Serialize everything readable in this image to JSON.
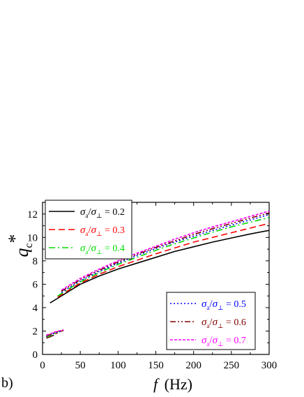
{
  "panel_label": "b)",
  "chart_data": {
    "type": "line",
    "xlabel": {
      "var": "f",
      "unit": "(Hz)"
    },
    "ylabel": {
      "var": "q",
      "sub": "c",
      "sup": "*"
    },
    "xlim": [
      0,
      300
    ],
    "ylim": [
      0,
      13
    ],
    "x_ticks": [
      0,
      50,
      100,
      150,
      200,
      250,
      300
    ],
    "y_ticks": [
      0,
      2,
      4,
      6,
      8,
      10,
      12
    ],
    "grid": false,
    "legend_placement": [
      "top-left",
      "bottom-right"
    ],
    "series": [
      {
        "name": "σa/σ⊥ = 0.2",
        "legend": {
          "num": "σ",
          "num_sub": "a",
          "den": "σ",
          "den_sub": "⊥",
          "value": "= 0.2"
        },
        "color": "#000000",
        "dash": "solid",
        "x": [
          10,
          20,
          30,
          40,
          50,
          75,
          100,
          125,
          150,
          175,
          200,
          225,
          250,
          275,
          300
        ],
        "y": [
          4.4,
          4.8,
          5.2,
          5.6,
          6.0,
          6.7,
          7.3,
          7.8,
          8.3,
          8.8,
          9.2,
          9.6,
          9.95,
          10.3,
          10.6
        ],
        "low_x": [
          5,
          10,
          15
        ],
        "low_y": [
          1.4,
          1.5,
          1.65
        ]
      },
      {
        "name": "σa/σ⊥ = 0.3",
        "legend": {
          "num": "σ",
          "num_sub": "a",
          "den": "σ",
          "den_sub": "⊥",
          "value": "= 0.3"
        },
        "color": "#ff0000",
        "dash": "dashed",
        "x": [
          20,
          30,
          40,
          50,
          75,
          100,
          125,
          150,
          175,
          200,
          225,
          250,
          275,
          300
        ],
        "y": [
          4.9,
          5.3,
          5.7,
          6.1,
          6.85,
          7.5,
          8.05,
          8.6,
          9.1,
          9.6,
          10.0,
          10.4,
          10.8,
          11.2
        ],
        "low_x": [
          5,
          10,
          15,
          20
        ],
        "low_y": [
          1.45,
          1.55,
          1.7,
          1.85
        ]
      },
      {
        "name": "σa/σ⊥ = 0.4",
        "legend": {
          "num": "σ",
          "num_sub": "a",
          "den": "σ",
          "den_sub": "⊥",
          "value": "= 0.4"
        },
        "color": "#00dd00",
        "dash": "dashdot",
        "x": [
          20,
          30,
          40,
          50,
          75,
          100,
          125,
          150,
          175,
          200,
          225,
          250,
          275,
          300
        ],
        "y": [
          5.0,
          5.4,
          5.8,
          6.2,
          7.0,
          7.7,
          8.3,
          8.9,
          9.45,
          9.95,
          10.45,
          10.9,
          11.3,
          11.7
        ],
        "low_x": [
          5,
          10,
          15,
          20,
          25
        ],
        "low_y": [
          1.5,
          1.6,
          1.75,
          1.9,
          2.0
        ]
      },
      {
        "name": "σa/σ⊥ = 0.5",
        "legend": {
          "num": "σ",
          "num_sub": "a",
          "den": "σ",
          "den_sub": "⊥",
          "value": "= 0.5"
        },
        "color": "#0000ff",
        "dash": "dotted",
        "x": [
          25,
          30,
          40,
          50,
          75,
          100,
          125,
          150,
          175,
          200,
          225,
          250,
          275,
          300
        ],
        "y": [
          5.3,
          5.5,
          5.9,
          6.3,
          7.1,
          7.8,
          8.45,
          9.05,
          9.6,
          10.1,
          10.6,
          11.05,
          11.5,
          11.95
        ],
        "low_x": [
          5,
          10,
          15,
          20,
          25
        ],
        "low_y": [
          1.55,
          1.65,
          1.8,
          1.9,
          2.0
        ]
      },
      {
        "name": "σa/σ⊥ = 0.6",
        "legend": {
          "num": "σ",
          "num_sub": "a",
          "den": "σ",
          "den_sub": "⊥",
          "value": "= 0.6"
        },
        "color": "#800000",
        "dash": "dashdotdot",
        "x": [
          25,
          30,
          40,
          50,
          75,
          100,
          125,
          150,
          175,
          200,
          225,
          250,
          275,
          300
        ],
        "y": [
          5.4,
          5.6,
          6.0,
          6.4,
          7.2,
          7.9,
          8.55,
          9.15,
          9.7,
          10.25,
          10.75,
          11.2,
          11.65,
          12.1
        ],
        "low_x": [
          5,
          10,
          15,
          20,
          25,
          28
        ],
        "low_y": [
          1.6,
          1.7,
          1.85,
          1.95,
          2.0,
          2.05
        ]
      },
      {
        "name": "σa/σ⊥ = 0.7",
        "legend": {
          "num": "σ",
          "num_sub": "a",
          "den": "σ",
          "den_sub": "⊥",
          "value": "= 0.7"
        },
        "color": "#ff00ff",
        "dash": "shortdash",
        "x": [
          25,
          30,
          40,
          50,
          75,
          100,
          125,
          150,
          175,
          200,
          225,
          250,
          275,
          300
        ],
        "y": [
          5.5,
          5.7,
          6.1,
          6.5,
          7.3,
          8.0,
          8.65,
          9.25,
          9.85,
          10.4,
          10.9,
          11.35,
          11.8,
          12.25
        ],
        "low_x": [
          5,
          10,
          15,
          20,
          25,
          28
        ],
        "low_y": [
          1.65,
          1.75,
          1.9,
          2.0,
          2.05,
          2.1
        ]
      }
    ]
  }
}
